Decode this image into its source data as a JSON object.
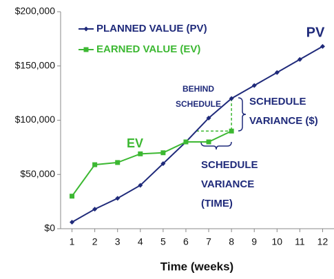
{
  "chart_data": {
    "type": "line",
    "x_label": "Time (weeks)",
    "x": [
      1,
      2,
      3,
      4,
      5,
      6,
      7,
      8,
      9,
      10,
      11,
      12
    ],
    "series": [
      {
        "name": "PLANNED VALUE (PV)",
        "color": "#1f2a7a",
        "values": [
          6000,
          18000,
          28000,
          40000,
          60000,
          80000,
          102000,
          120000,
          132000,
          144000,
          156000,
          168000
        ]
      },
      {
        "name": "EARNED VALUE (EV)",
        "color": "#3cb832",
        "values": [
          30000,
          59000,
          61000,
          69000,
          70000,
          80000,
          80000,
          90000,
          null,
          null,
          null,
          null
        ]
      }
    ],
    "xlim": [
      0.5,
      12.5
    ],
    "xticks": [
      1,
      2,
      3,
      4,
      5,
      6,
      7,
      8,
      9,
      10,
      11,
      12
    ],
    "ylim": [
      0,
      200000
    ],
    "yticks": [
      {
        "value": 0,
        "label": "$0"
      },
      {
        "value": 50000,
        "label": "$50,000"
      },
      {
        "value": 100000,
        "label": "$100,000"
      },
      {
        "value": 150000,
        "label": "$150,000"
      },
      {
        "value": 200000,
        "label": "$200,000"
      }
    ],
    "annotations": [
      {
        "lines": [
          "PV"
        ]
      },
      {
        "lines": [
          "EV"
        ]
      },
      {
        "lines": [
          "BEHIND",
          "SCHEDULE"
        ]
      },
      {
        "lines": [
          "SCHEDULE",
          "VARIANCE ($)"
        ]
      },
      {
        "lines": [
          "SCHEDULE",
          "VARIANCE",
          "(TIME)"
        ]
      }
    ]
  }
}
